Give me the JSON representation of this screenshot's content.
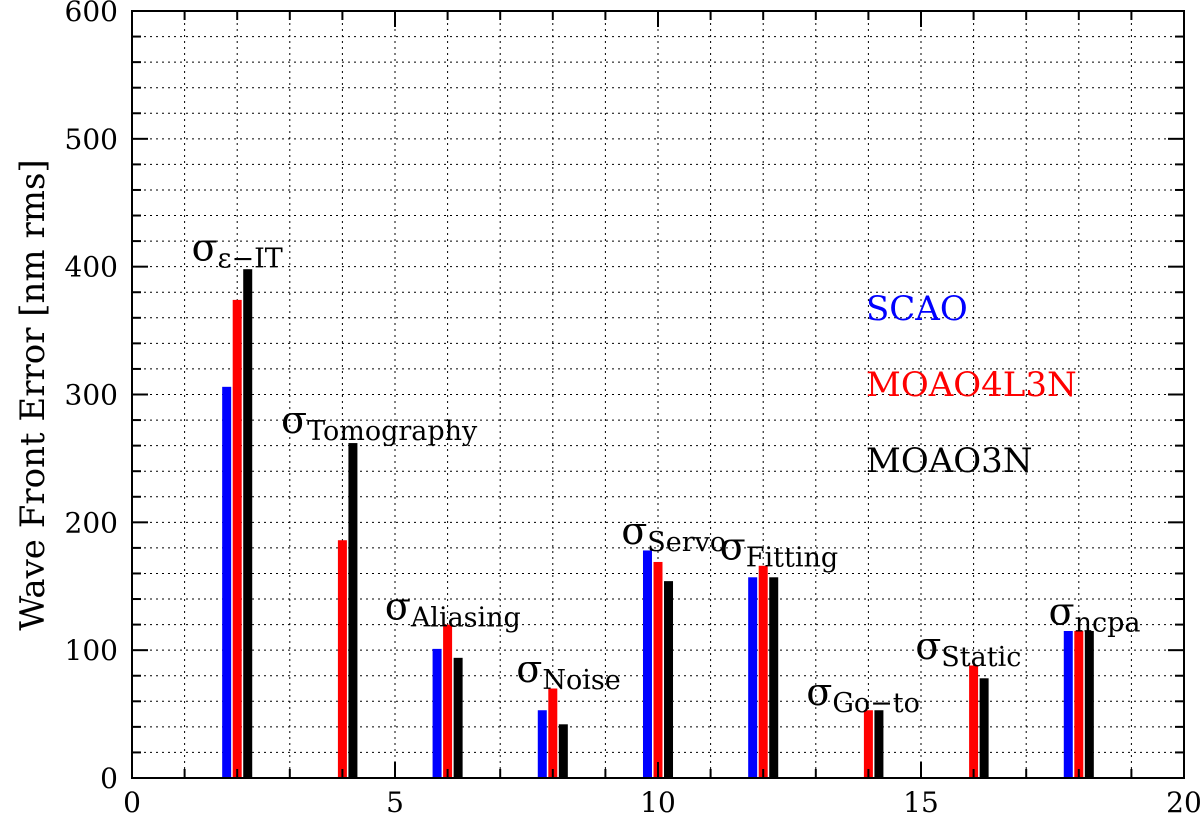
{
  "chart_data": {
    "type": "bar",
    "ylabel": "Wave Front Error [nm rms]",
    "xlim": [
      0,
      20
    ],
    "ylim": [
      0,
      600
    ],
    "x_ticks": [
      0,
      5,
      10,
      15,
      20
    ],
    "y_ticks": [
      0,
      100,
      200,
      300,
      400,
      500,
      600
    ],
    "grid": true,
    "legend_position": "right",
    "series": [
      {
        "name": "SCAO",
        "color": "#0000ff",
        "x": [
          1.8,
          5.8,
          7.8,
          9.8,
          11.8,
          17.8
        ],
        "values": [
          306,
          101,
          53,
          178,
          157,
          115
        ]
      },
      {
        "name": "MOAO4L3N",
        "color": "#ff0000",
        "x": [
          2.0,
          4.0,
          6.0,
          8.0,
          10.0,
          12.0,
          14.0,
          16.0,
          18.0
        ],
        "values": [
          374,
          186,
          120,
          70,
          169,
          166,
          53,
          88,
          115
        ]
      },
      {
        "name": "MOAO3N",
        "color": "#000000",
        "x": [
          2.2,
          4.2,
          6.2,
          8.2,
          10.2,
          12.2,
          14.2,
          16.2,
          18.2
        ],
        "values": [
          398,
          262,
          94,
          42,
          154,
          157,
          53,
          78,
          115
        ]
      }
    ],
    "annotations": [
      {
        "base": "σ",
        "sub": "ε−IT",
        "x": 2.0,
        "y": 405
      },
      {
        "base": "σ",
        "sub": "Tomography",
        "x": 4.7,
        "y": 270
      },
      {
        "base": "σ",
        "sub": "Aliasing",
        "x": 6.1,
        "y": 124
      },
      {
        "base": "σ",
        "sub": "Noise",
        "x": 8.3,
        "y": 75
      },
      {
        "base": "σ",
        "sub": "Servo",
        "x": 10.3,
        "y": 183
      },
      {
        "base": "σ",
        "sub": "Fitting",
        "x": 12.3,
        "y": 171
      },
      {
        "base": "σ",
        "sub": "Go−to",
        "x": 13.9,
        "y": 57
      },
      {
        "base": "σ",
        "sub": "Static",
        "x": 15.9,
        "y": 93
      },
      {
        "base": "σ",
        "sub": "ncpa",
        "x": 18.3,
        "y": 120
      }
    ]
  }
}
